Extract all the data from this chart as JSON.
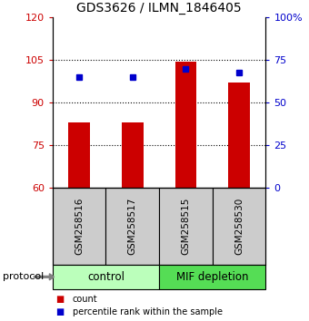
{
  "title": "GDS3626 / ILMN_1846405",
  "samples": [
    "GSM258516",
    "GSM258517",
    "GSM258515",
    "GSM258530"
  ],
  "bar_values": [
    83.0,
    83.0,
    104.5,
    97.0
  ],
  "percentile_values": [
    65.0,
    65.0,
    70.0,
    68.0
  ],
  "ymin": 60,
  "ymax": 120,
  "yticks_left": [
    60,
    75,
    90,
    105,
    120
  ],
  "yticks_right": [
    0,
    25,
    50,
    75,
    100
  ],
  "bar_color": "#cc0000",
  "percentile_color": "#0000cc",
  "group_labels": [
    "control",
    "MIF depletion"
  ],
  "group_ranges": [
    [
      0,
      2
    ],
    [
      2,
      4
    ]
  ],
  "group_colors": [
    "#bbffbb",
    "#55dd55"
  ],
  "sample_box_color": "#cccccc",
  "protocol_label": "protocol",
  "legend_items": [
    {
      "label": "count",
      "color": "#cc0000"
    },
    {
      "label": "percentile rank within the sample",
      "color": "#0000cc"
    }
  ]
}
